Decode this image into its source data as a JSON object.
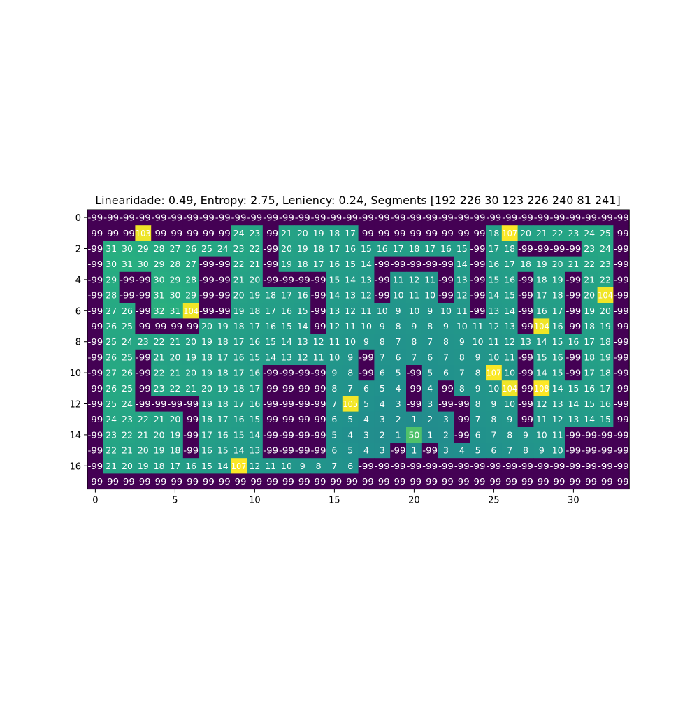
{
  "chart_data": {
    "type": "heatmap",
    "title": "Linearidade: 0.49, Entropy: 2.75, Leniency: 0.24, Segments [192 226  30 123 226 240  81 241]",
    "x_ticks": [
      0,
      5,
      10,
      15,
      20,
      25,
      30
    ],
    "y_ticks": [
      0,
      2,
      4,
      6,
      8,
      10,
      12,
      14,
      16
    ],
    "colormap": "viridis",
    "value_range": [
      -99,
      108
    ],
    "grid": [
      [
        -99,
        -99,
        -99,
        -99,
        -99,
        -99,
        -99,
        -99,
        -99,
        -99,
        -99,
        -99,
        -99,
        -99,
        -99,
        -99,
        -99,
        -99,
        -99,
        -99,
        -99,
        -99,
        -99,
        -99,
        -99,
        -99,
        -99,
        -99,
        -99,
        -99,
        -99,
        -99,
        -99,
        -99
      ],
      [
        -99,
        -99,
        -99,
        103,
        -99,
        -99,
        -99,
        -99,
        -99,
        24,
        23,
        -99,
        21,
        20,
        19,
        18,
        17,
        -99,
        -99,
        -99,
        -99,
        -99,
        -99,
        -99,
        -99,
        18,
        107,
        20,
        21,
        22,
        23,
        24,
        25,
        -99
      ],
      [
        -99,
        31,
        30,
        29,
        28,
        27,
        26,
        25,
        24,
        23,
        22,
        -99,
        20,
        19,
        18,
        17,
        16,
        15,
        16,
        17,
        18,
        17,
        16,
        15,
        -99,
        17,
        18,
        -99,
        -99,
        -99,
        -99,
        23,
        24,
        -99
      ],
      [
        -99,
        30,
        31,
        30,
        29,
        28,
        27,
        -99,
        -99,
        22,
        21,
        -99,
        19,
        18,
        17,
        16,
        15,
        14,
        -99,
        -99,
        -99,
        -99,
        -99,
        14,
        -99,
        16,
        17,
        18,
        19,
        20,
        21,
        22,
        23,
        -99
      ],
      [
        -99,
        29,
        -99,
        -99,
        30,
        29,
        28,
        -99,
        -99,
        21,
        20,
        -99,
        -99,
        -99,
        -99,
        15,
        14,
        13,
        -99,
        11,
        12,
        11,
        -99,
        13,
        -99,
        15,
        16,
        -99,
        18,
        19,
        -99,
        21,
        22,
        -99
      ],
      [
        -99,
        28,
        -99,
        -99,
        31,
        30,
        29,
        -99,
        -99,
        20,
        19,
        18,
        17,
        16,
        -99,
        14,
        13,
        12,
        -99,
        10,
        11,
        10,
        -99,
        12,
        -99,
        14,
        15,
        -99,
        17,
        18,
        -99,
        20,
        104,
        -99
      ],
      [
        -99,
        27,
        26,
        -99,
        32,
        31,
        104,
        -99,
        -99,
        19,
        18,
        17,
        16,
        15,
        -99,
        13,
        12,
        11,
        10,
        9,
        10,
        9,
        10,
        11,
        -99,
        13,
        14,
        -99,
        16,
        17,
        -99,
        19,
        20,
        -99
      ],
      [
        -99,
        26,
        25,
        -99,
        -99,
        -99,
        -99,
        20,
        19,
        18,
        17,
        16,
        15,
        14,
        -99,
        12,
        11,
        10,
        9,
        8,
        9,
        8,
        9,
        10,
        11,
        12,
        13,
        -99,
        104,
        16,
        -99,
        18,
        19,
        -99
      ],
      [
        -99,
        25,
        24,
        23,
        22,
        21,
        20,
        19,
        18,
        17,
        16,
        15,
        14,
        13,
        12,
        11,
        10,
        9,
        8,
        7,
        8,
        7,
        8,
        9,
        10,
        11,
        12,
        13,
        14,
        15,
        16,
        17,
        18,
        -99
      ],
      [
        -99,
        26,
        25,
        -99,
        21,
        20,
        19,
        18,
        17,
        16,
        15,
        14,
        13,
        12,
        11,
        10,
        9,
        -99,
        7,
        6,
        7,
        6,
        7,
        8,
        9,
        10,
        11,
        -99,
        15,
        16,
        -99,
        18,
        19,
        -99
      ],
      [
        -99,
        27,
        26,
        -99,
        22,
        21,
        20,
        19,
        18,
        17,
        16,
        -99,
        -99,
        -99,
        -99,
        9,
        8,
        -99,
        6,
        5,
        -99,
        5,
        6,
        7,
        8,
        107,
        10,
        -99,
        14,
        15,
        -99,
        17,
        18,
        -99
      ],
      [
        -99,
        26,
        25,
        -99,
        23,
        22,
        21,
        20,
        19,
        18,
        17,
        -99,
        -99,
        -99,
        -99,
        8,
        7,
        6,
        5,
        4,
        -99,
        4,
        -99,
        8,
        9,
        10,
        104,
        -99,
        108,
        14,
        15,
        16,
        17,
        -99
      ],
      [
        -99,
        25,
        24,
        -99,
        -99,
        -99,
        -99,
        19,
        18,
        17,
        16,
        -99,
        -99,
        -99,
        -99,
        7,
        105,
        5,
        4,
        3,
        -99,
        3,
        -99,
        -99,
        8,
        9,
        10,
        -99,
        12,
        13,
        14,
        15,
        16,
        -99
      ],
      [
        -99,
        24,
        23,
        22,
        21,
        20,
        -99,
        18,
        17,
        16,
        15,
        -99,
        -99,
        -99,
        -99,
        6,
        5,
        4,
        3,
        2,
        1,
        2,
        3,
        -99,
        7,
        8,
        9,
        -99,
        11,
        12,
        13,
        14,
        15,
        -99
      ],
      [
        -99,
        23,
        22,
        21,
        20,
        19,
        -99,
        17,
        16,
        15,
        14,
        -99,
        -99,
        -99,
        -99,
        5,
        4,
        3,
        2,
        1,
        50,
        1,
        2,
        -99,
        6,
        7,
        8,
        9,
        10,
        11,
        -99,
        -99,
        -99,
        -99
      ],
      [
        -99,
        22,
        21,
        20,
        19,
        18,
        -99,
        16,
        15,
        14,
        13,
        -99,
        -99,
        -99,
        -99,
        6,
        5,
        4,
        3,
        -99,
        1,
        -99,
        3,
        4,
        5,
        6,
        7,
        8,
        9,
        10,
        -99,
        -99,
        -99,
        -99
      ],
      [
        -99,
        21,
        20,
        19,
        18,
        17,
        16,
        15,
        14,
        107,
        12,
        11,
        10,
        9,
        8,
        7,
        6,
        -99,
        -99,
        -99,
        -99,
        -99,
        -99,
        -99,
        -99,
        -99,
        -99,
        -99,
        -99,
        -99,
        -99,
        -99,
        -99,
        -99
      ],
      [
        -99,
        -99,
        -99,
        -99,
        -99,
        -99,
        -99,
        -99,
        -99,
        -99,
        -99,
        -99,
        -99,
        -99,
        -99,
        -99,
        -99,
        -99,
        -99,
        -99,
        -99,
        -99,
        -99,
        -99,
        -99,
        -99,
        -99,
        -99,
        -99,
        -99,
        -99,
        -99,
        -99,
        -99
      ]
    ]
  }
}
